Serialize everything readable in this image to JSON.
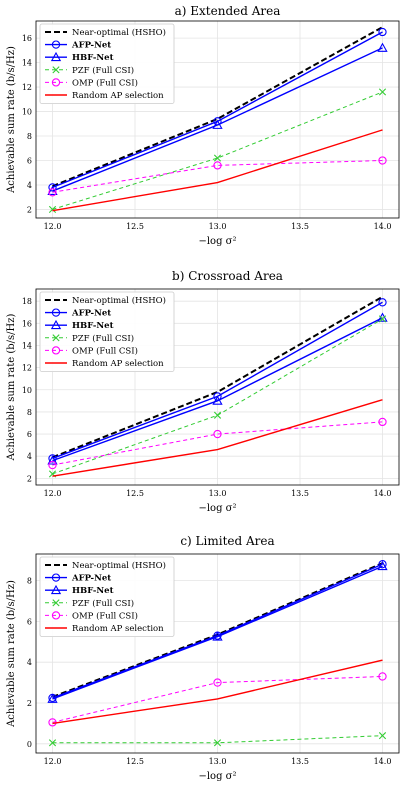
{
  "chart_data": [
    {
      "type": "line",
      "title": "a) Extended Area",
      "xlabel": "−log σ²",
      "ylabel": "Achievable sum rate (b/s/Hz)",
      "x": [
        12.0,
        13.0,
        14.0
      ],
      "xlim": [
        11.9,
        14.1
      ],
      "xticks": [
        "12.0",
        "12.5",
        "13.0",
        "13.5",
        "14.0"
      ],
      "ylim": [
        1.3,
        17.4
      ],
      "yticks": [
        2,
        4,
        6,
        8,
        10,
        12,
        14,
        16
      ],
      "grid": true,
      "legend_position": "top-left",
      "series": [
        {
          "name": "Near-optimal (HSHO)",
          "values": [
            3.9,
            9.4,
            16.9
          ]
        },
        {
          "name": "AFP-Net",
          "values": [
            3.8,
            9.2,
            16.5
          ]
        },
        {
          "name": "HBF-Net",
          "values": [
            3.5,
            8.9,
            15.2
          ]
        },
        {
          "name": "PZF (Full CSI)",
          "values": [
            2.0,
            6.2,
            11.6
          ]
        },
        {
          "name": "OMP (Full CSI)",
          "values": [
            3.4,
            5.6,
            6.0
          ]
        },
        {
          "name": "Random AP selection",
          "values": [
            1.9,
            4.2,
            8.5
          ]
        }
      ]
    },
    {
      "type": "line",
      "title": "b) Crossroad Area",
      "xlabel": "−log σ²",
      "ylabel": "Achievable sum rate (b/s/Hz)",
      "x": [
        12.0,
        13.0,
        14.0
      ],
      "xlim": [
        11.9,
        14.1
      ],
      "xticks": [
        "12.0",
        "12.5",
        "13.0",
        "13.5",
        "14.0"
      ],
      "ylim": [
        1.4,
        19.1
      ],
      "yticks": [
        2,
        4,
        6,
        8,
        10,
        12,
        14,
        16,
        18
      ],
      "grid": true,
      "legend_position": "top-left",
      "series": [
        {
          "name": "Near-optimal (HSHO)",
          "values": [
            3.9,
            9.8,
            18.4
          ]
        },
        {
          "name": "AFP-Net",
          "values": [
            3.8,
            9.4,
            17.9
          ]
        },
        {
          "name": "HBF-Net",
          "values": [
            3.6,
            9.0,
            16.5
          ]
        },
        {
          "name": "PZF (Full CSI)",
          "values": [
            2.4,
            7.7,
            16.4
          ]
        },
        {
          "name": "OMP (Full CSI)",
          "values": [
            3.2,
            6.0,
            7.1
          ]
        },
        {
          "name": "Random AP selection",
          "values": [
            2.2,
            4.6,
            9.1
          ]
        }
      ]
    },
    {
      "type": "line",
      "title": "c) Limited Area",
      "xlabel": "−log σ²",
      "ylabel": "Achievable sum rate (b/s/Hz)",
      "x": [
        12.0,
        13.0,
        14.0
      ],
      "xlim": [
        11.9,
        14.1
      ],
      "xticks": [
        "12.0",
        "12.5",
        "13.0",
        "13.5",
        "14.0"
      ],
      "ylim": [
        -0.45,
        9.3
      ],
      "yticks": [
        0,
        2,
        4,
        6,
        8
      ],
      "grid": true,
      "legend_position": "top-left",
      "series": [
        {
          "name": "Near-optimal (HSHO)",
          "values": [
            2.3,
            5.35,
            8.85
          ]
        },
        {
          "name": "AFP-Net",
          "values": [
            2.25,
            5.3,
            8.8
          ]
        },
        {
          "name": "HBF-Net",
          "values": [
            2.2,
            5.25,
            8.7
          ]
        },
        {
          "name": "PZF (Full CSI)",
          "values": [
            0.05,
            0.05,
            0.4
          ]
        },
        {
          "name": "OMP (Full CSI)",
          "values": [
            1.05,
            3.0,
            3.3
          ]
        },
        {
          "name": "Random AP selection",
          "values": [
            1.0,
            2.2,
            4.1
          ]
        }
      ]
    }
  ],
  "series_styles": [
    {
      "color": "#000000",
      "dash": "6,3",
      "marker": "none",
      "bold": false
    },
    {
      "color": "#0000ff",
      "dash": "",
      "marker": "circle",
      "bold": true
    },
    {
      "color": "#0000ff",
      "dash": "",
      "marker": "triangle",
      "bold": true
    },
    {
      "color": "#33cc33",
      "dash": "4,3",
      "marker": "x",
      "bold": false
    },
    {
      "color": "#ff00ff",
      "dash": "4,3",
      "marker": "circle",
      "bold": false
    },
    {
      "color": "#ff0000",
      "dash": "",
      "marker": "none",
      "bold": false
    }
  ]
}
